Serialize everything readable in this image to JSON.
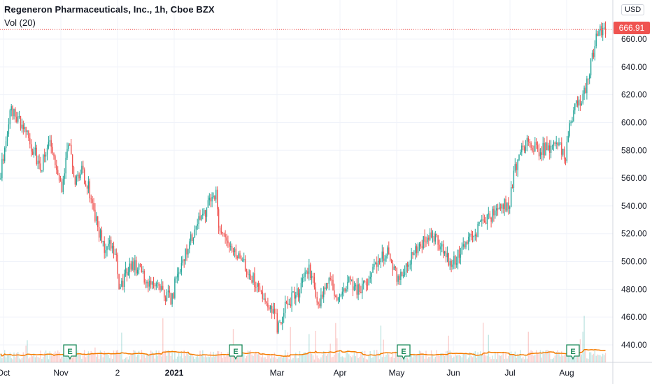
{
  "header": {
    "title": "Regeneron Pharmaceuticals, Inc., 1h, Cboe BZX",
    "indicator": "Vol (20)"
  },
  "price_axis": {
    "currency": "USD",
    "top_tick_partial": "6",
    "last_price": "666.91"
  },
  "earnings_marker_label": "E",
  "colors": {
    "up": "#26a69a",
    "down": "#ef5350",
    "volume_ma": "#f57c00",
    "grid": "#f0f3fa",
    "axis_text": "#131722",
    "last_price_line": "#ef5350"
  },
  "chart_data": {
    "type": "candlestick",
    "title": "Regeneron Pharmaceuticals, Inc., 1h, Cboe BZX",
    "ylabel": "USD",
    "ylim": [
      430,
      675
    ],
    "y_ticks": [
      440,
      460,
      480,
      500,
      520,
      540,
      560,
      580,
      600,
      620,
      640,
      660
    ],
    "x_ticks": [
      "Oct",
      "Nov",
      "2",
      "2021",
      "Mar",
      "Apr",
      "May",
      "Jun",
      "Jul",
      "Aug"
    ],
    "grid": true,
    "last_price": 666.91,
    "earnings_markers": [
      "Nov",
      "Feb",
      "May",
      "Aug"
    ],
    "price_path": [
      {
        "x": "Oct",
        "y": 560
      },
      {
        "x": "Oct",
        "y": 610
      },
      {
        "x": "Oct",
        "y": 600
      },
      {
        "x": "Oct",
        "y": 585
      },
      {
        "x": "Oct",
        "y": 568
      },
      {
        "x": "Oct",
        "y": 585
      },
      {
        "x": "Oct",
        "y": 558
      },
      {
        "x": "Nov",
        "y": 540
      },
      {
        "x": "Nov",
        "y": 590
      },
      {
        "x": "Nov",
        "y": 560
      },
      {
        "x": "Nov",
        "y": 565
      },
      {
        "x": "Nov",
        "y": 552
      },
      {
        "x": "Nov",
        "y": 530
      },
      {
        "x": "Nov",
        "y": 510
      },
      {
        "x": "Nov",
        "y": 515
      },
      {
        "x": "Nov",
        "y": 500
      },
      {
        "x": "Dec",
        "y": 478
      },
      {
        "x": "Dec",
        "y": 500
      },
      {
        "x": "Dec",
        "y": 487
      },
      {
        "x": "Dec",
        "y": 478
      },
      {
        "x": "Dec",
        "y": 472
      },
      {
        "x": "2021",
        "y": 485
      },
      {
        "x": "2021",
        "y": 505
      },
      {
        "x": "2021",
        "y": 525
      },
      {
        "x": "2021",
        "y": 538
      },
      {
        "x": "2021",
        "y": 550
      },
      {
        "x": "Feb",
        "y": 530
      },
      {
        "x": "Feb",
        "y": 510
      },
      {
        "x": "Feb",
        "y": 500
      },
      {
        "x": "Feb",
        "y": 488
      },
      {
        "x": "Feb",
        "y": 475
      },
      {
        "x": "Feb",
        "y": 460
      },
      {
        "x": "Mar",
        "y": 452
      },
      {
        "x": "Mar",
        "y": 470
      },
      {
        "x": "Mar",
        "y": 478
      },
      {
        "x": "Mar",
        "y": 495
      },
      {
        "x": "Mar",
        "y": 470
      },
      {
        "x": "Mar",
        "y": 485
      },
      {
        "x": "Mar",
        "y": 470
      },
      {
        "x": "Apr",
        "y": 478
      },
      {
        "x": "Apr",
        "y": 487
      },
      {
        "x": "Apr",
        "y": 478
      },
      {
        "x": "Apr",
        "y": 488
      },
      {
        "x": "Apr",
        "y": 502
      },
      {
        "x": "Apr",
        "y": 506
      },
      {
        "x": "Apr",
        "y": 494
      },
      {
        "x": "May",
        "y": 485
      },
      {
        "x": "May",
        "y": 500
      },
      {
        "x": "May",
        "y": 512
      },
      {
        "x": "May",
        "y": 522
      },
      {
        "x": "May",
        "y": 510
      },
      {
        "x": "May",
        "y": 496
      },
      {
        "x": "Jun",
        "y": 500
      },
      {
        "x": "Jun",
        "y": 510
      },
      {
        "x": "Jun",
        "y": 522
      },
      {
        "x": "Jun",
        "y": 530
      },
      {
        "x": "Jun",
        "y": 538
      },
      {
        "x": "Jun",
        "y": 542
      },
      {
        "x": "Jul",
        "y": 550
      },
      {
        "x": "Jul",
        "y": 580
      },
      {
        "x": "Jul",
        "y": 585
      },
      {
        "x": "Jul",
        "y": 580
      },
      {
        "x": "Jul",
        "y": 582
      },
      {
        "x": "Jul",
        "y": 585
      },
      {
        "x": "Jul",
        "y": 576
      },
      {
        "x": "Aug",
        "y": 590
      },
      {
        "x": "Aug",
        "y": 610
      },
      {
        "x": "Aug",
        "y": 615
      },
      {
        "x": "Aug",
        "y": 640
      },
      {
        "x": "Aug",
        "y": 668
      },
      {
        "x": "Aug",
        "y": 666.91
      }
    ]
  }
}
